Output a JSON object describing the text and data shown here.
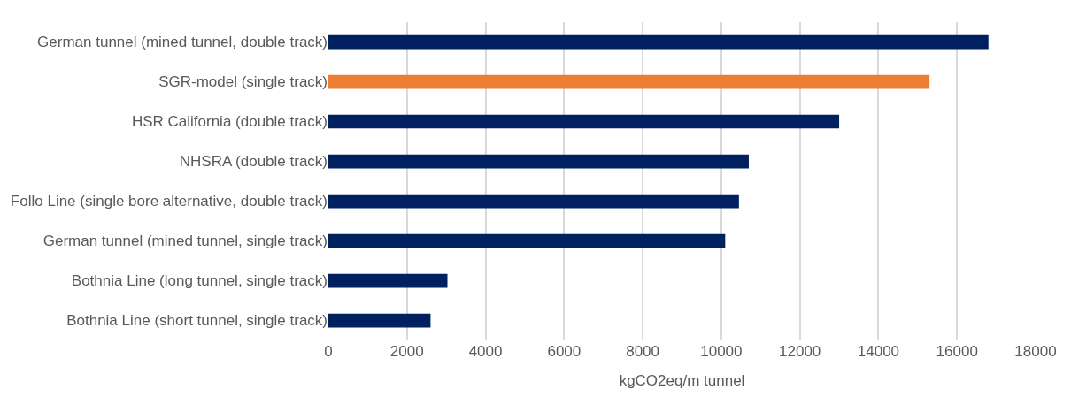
{
  "chart_data": {
    "type": "bar",
    "orientation": "horizontal",
    "categories": [
      "German tunnel (mined tunnel, double track)",
      "SGR-model (single track)",
      "HSR California (double track)",
      "NHSRA (double track)",
      "Follo Line (single bore alternative, double track)",
      "German tunnel (mined tunnel, single track)",
      "Bothnia Line (long tunnel, single track)",
      "Bothnia Line (short tunnel, single track)"
    ],
    "values": [
      16800,
      15300,
      13000,
      10700,
      10450,
      10100,
      3030,
      2600
    ],
    "colors": [
      "#002060",
      "#ed7d31",
      "#002060",
      "#002060",
      "#002060",
      "#002060",
      "#002060",
      "#002060"
    ],
    "xlabel": "kgCO2eq/m tunnel",
    "xlim": [
      0,
      18000
    ],
    "xticks": [
      0,
      2000,
      4000,
      6000,
      8000,
      10000,
      12000,
      14000,
      16000,
      18000
    ],
    "grid": "x"
  }
}
